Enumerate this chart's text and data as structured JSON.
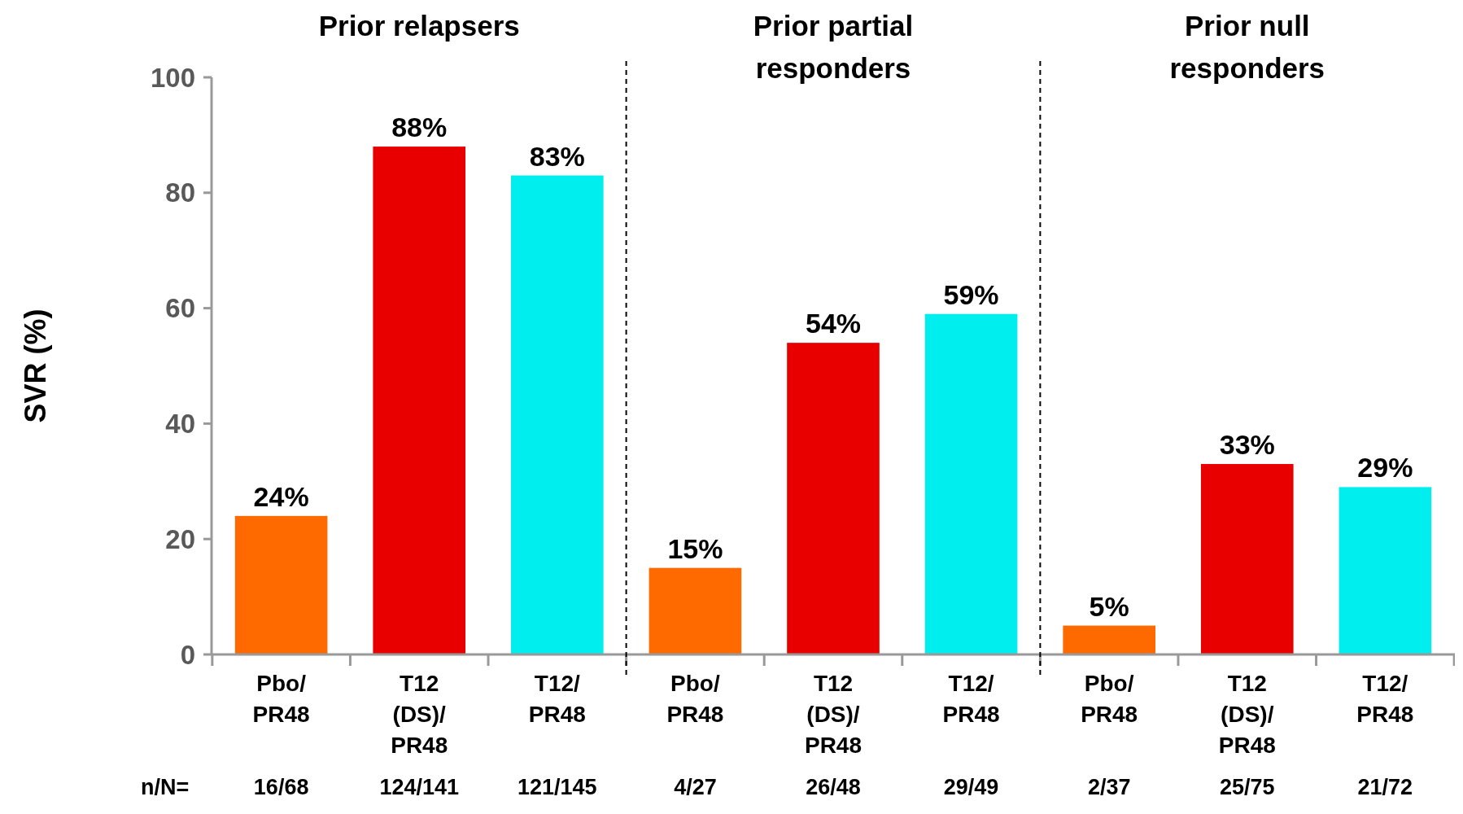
{
  "chart_data": {
    "type": "bar",
    "ylabel": "SVR (%)",
    "categories": [
      "Pbo/\nPR48",
      "T12\n(DS)/\nPR48",
      "T12/\nPR48",
      "Pbo/\nPR48",
      "T12\n(DS)/\nPR48",
      "T12/\nPR48",
      "Pbo/\nPR48",
      "T12\n(DS)/\nPR48",
      "T12/\nPR48"
    ],
    "values": [
      24,
      88,
      83,
      15,
      54,
      59,
      5,
      33,
      29
    ],
    "value_labels": [
      "24%",
      "88%",
      "83%",
      "15%",
      "54%",
      "59%",
      "5%",
      "33%",
      "29%"
    ],
    "colors": [
      "#ff6a00",
      "#e80000",
      "#00eeee",
      "#ff6a00",
      "#e80000",
      "#00eeee",
      "#ff6a00",
      "#e80000",
      "#00eeee"
    ],
    "ylim": [
      0,
      100
    ],
    "yticks": [
      0,
      20,
      40,
      60,
      80,
      100
    ],
    "grid": false,
    "annotations": [
      "Prior relapsers",
      "Prior partial\nresponders",
      "Prior null\nresponders",
      "n/N=",
      "16/68",
      "124/141",
      "121/145",
      "4/27",
      "26/48",
      "29/49",
      "2/37",
      "25/75",
      "21/72"
    ]
  }
}
